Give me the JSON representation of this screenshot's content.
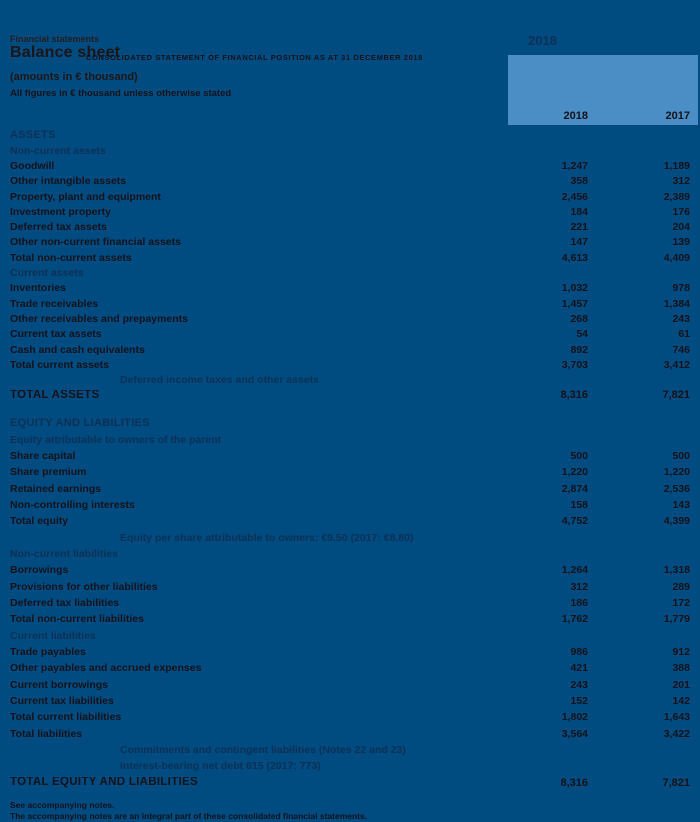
{
  "colors": {
    "background": "#004b80",
    "highlight": "#4a8ec5",
    "text_black": "#14121a",
    "text_navy": "#0c3155"
  },
  "header": {
    "eyebrow": "Financial statements",
    "title": "Balance sheet",
    "subtitle_caps": "CONSOLIDATED STATEMENT OF FINANCIAL POSITION AS AT 31 DECEMBER 2018",
    "units_note": "(amounts in € thousand)",
    "units_note2": "All figures in € thousand unless otherwise stated",
    "period_label": "2018",
    "year_columns": [
      "2018",
      "2017"
    ]
  },
  "table": {
    "sections": [
      {
        "rows": [
          {
            "label": "ASSETS",
            "v2018": "",
            "v2017": "",
            "style": "section-header"
          },
          {
            "label": "Non-current assets",
            "v2018": "",
            "v2017": "",
            "style": "subhead"
          },
          {
            "label": "Goodwill",
            "v2018": "1,247",
            "v2017": "1,189",
            "style": "item"
          },
          {
            "label": "Other intangible assets",
            "v2018": "358",
            "v2017": "312",
            "style": "item"
          },
          {
            "label": "Property, plant and equipment",
            "v2018": "2,456",
            "v2017": "2,389",
            "style": "item"
          },
          {
            "label": "Investment property",
            "v2018": "184",
            "v2017": "176",
            "style": "item"
          },
          {
            "label": "Deferred tax assets",
            "v2018": "221",
            "v2017": "204",
            "style": "item"
          },
          {
            "label": "Other non-current financial assets",
            "v2018": "147",
            "v2017": "139",
            "style": "item"
          },
          {
            "label": "Total non-current assets",
            "v2018": "4,613",
            "v2017": "4,409",
            "style": "total"
          },
          {
            "label": "Current assets",
            "v2018": "",
            "v2017": "",
            "style": "subhead"
          },
          {
            "label": "Inventories",
            "v2018": "1,032",
            "v2017": "978",
            "style": "item"
          },
          {
            "label": "Trade receivables",
            "v2018": "1,457",
            "v2017": "1,384",
            "style": "item"
          },
          {
            "label": "Other receivables and prepayments",
            "v2018": "268",
            "v2017": "243",
            "style": "item"
          },
          {
            "label": "Current tax assets",
            "v2018": "54",
            "v2017": "61",
            "style": "item"
          },
          {
            "label": "Cash and cash equivalents",
            "v2018": "892",
            "v2017": "746",
            "style": "item"
          },
          {
            "label": "Total current assets",
            "v2018": "3,703",
            "v2017": "3,412",
            "style": "total"
          },
          {
            "label": "Deferred income taxes and other assets",
            "v2018": "",
            "v2017": "",
            "style": "note"
          },
          {
            "label": "TOTAL ASSETS",
            "v2018": "8,316",
            "v2017": "7,821",
            "style": "grand-total"
          }
        ]
      },
      {
        "rows": [
          {
            "label": "EQUITY AND LIABILITIES",
            "v2018": "",
            "v2017": "",
            "style": "section-header"
          },
          {
            "label": "Equity attributable to owners of the parent",
            "v2018": "",
            "v2017": "",
            "style": "subhead"
          },
          {
            "label": "Share capital",
            "v2018": "500",
            "v2017": "500",
            "style": "item"
          },
          {
            "label": "Share premium",
            "v2018": "1,220",
            "v2017": "1,220",
            "style": "item"
          },
          {
            "label": "Retained earnings",
            "v2018": "2,874",
            "v2017": "2,536",
            "style": "item"
          },
          {
            "label": "Non-controlling interests",
            "v2018": "158",
            "v2017": "143",
            "style": "item"
          },
          {
            "label": "Total equity",
            "v2018": "4,752",
            "v2017": "4,399",
            "style": "total"
          },
          {
            "label": "Equity per share attributable to owners: €9.50 (2017: €8.80)",
            "v2018": "",
            "v2017": "",
            "style": "note"
          },
          {
            "label": "Non-current liabilities",
            "v2018": "",
            "v2017": "",
            "style": "subhead"
          },
          {
            "label": "Borrowings",
            "v2018": "1,264",
            "v2017": "1,318",
            "style": "item"
          },
          {
            "label": "Provisions for other liabilities",
            "v2018": "312",
            "v2017": "289",
            "style": "item"
          },
          {
            "label": "Deferred tax liabilities",
            "v2018": "186",
            "v2017": "172",
            "style": "item"
          },
          {
            "label": "Total non-current liabilities",
            "v2018": "1,762",
            "v2017": "1,779",
            "style": "total"
          },
          {
            "label": "Current liabilities",
            "v2018": "",
            "v2017": "",
            "style": "subhead"
          },
          {
            "label": "Trade payables",
            "v2018": "986",
            "v2017": "912",
            "style": "item"
          },
          {
            "label": "Other payables and accrued expenses",
            "v2018": "421",
            "v2017": "388",
            "style": "item"
          },
          {
            "label": "Current borrowings",
            "v2018": "243",
            "v2017": "201",
            "style": "item"
          },
          {
            "label": "Current tax liabilities",
            "v2018": "152",
            "v2017": "142",
            "style": "item"
          },
          {
            "label": "Total current liabilities",
            "v2018": "1,802",
            "v2017": "1,643",
            "style": "total"
          },
          {
            "label": "Total liabilities",
            "v2018": "3,564",
            "v2017": "3,422",
            "style": "total"
          },
          {
            "label": "Commitments and contingent liabilities (Notes 22 and 23)",
            "v2018": "",
            "v2017": "",
            "style": "note"
          },
          {
            "label": "Interest-bearing net debt 615 (2017: 773)",
            "v2018": "",
            "v2017": "",
            "style": "note"
          },
          {
            "label": "TOTAL EQUITY AND LIABILITIES",
            "v2018": "8,316",
            "v2017": "7,821",
            "style": "grand-total"
          }
        ]
      }
    ]
  },
  "footer": {
    "note1": "See accompanying notes.",
    "note2": "The accompanying notes are an integral part of these consolidated financial statements."
  }
}
